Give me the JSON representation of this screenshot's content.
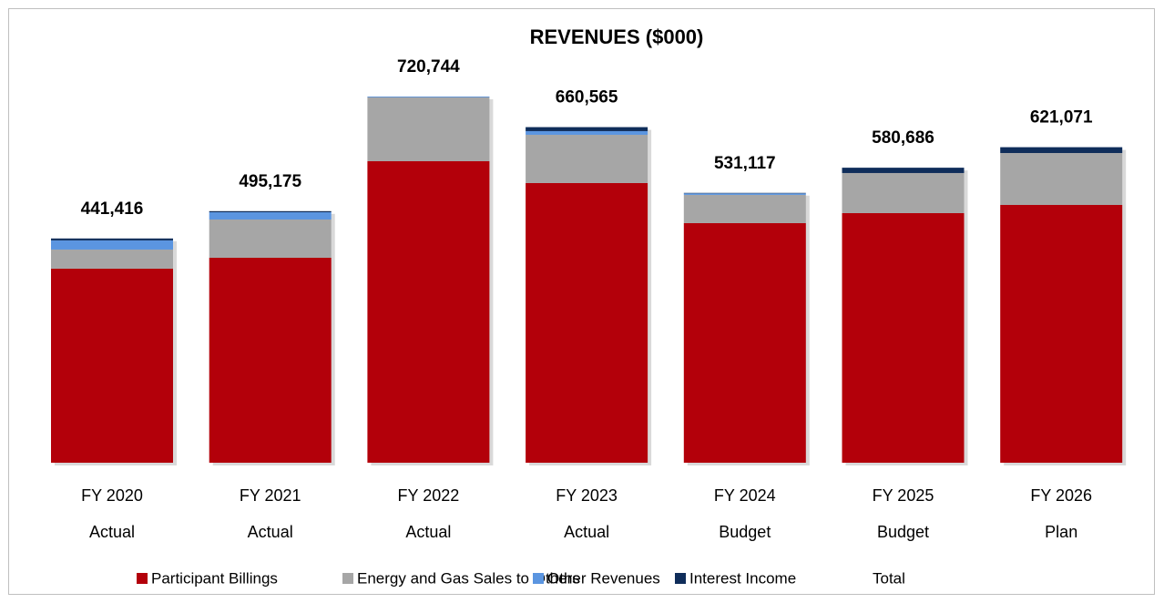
{
  "chart_data": {
    "type": "stacked-bar",
    "title": "REVENUES ($000)",
    "categories": [
      "FY 2020",
      "FY 2021",
      "FY 2022",
      "FY 2023",
      "FY 2024",
      "FY 2025",
      "FY 2026"
    ],
    "category_status": [
      "Actual",
      "Actual",
      "Actual",
      "Actual",
      "Budget",
      "Budget",
      "Plan"
    ],
    "series": [
      {
        "name": "Participant Billings",
        "color": "#b3000a",
        "values": [
          382000,
          403400,
          593500,
          550500,
          471600,
          491300,
          507400
        ]
      },
      {
        "name": "Energy and Gas Sales to Others",
        "color": "#a6a6a6",
        "values": [
          37600,
          75300,
          125500,
          95000,
          55600,
          78900,
          102200
        ]
      },
      {
        "name": "Other Revenues",
        "color": "#5b95e0",
        "values": [
          18000,
          14300,
          1500,
          7200,
          3000,
          0,
          0
        ]
      },
      {
        "name": "Interest Income",
        "color": "#0f2d5a",
        "values": [
          3816,
          2175,
          244,
          7865,
          917,
          10486,
          11471
        ]
      }
    ],
    "total": {
      "name": "Total",
      "values": [
        441416,
        495175,
        720744,
        660565,
        531117,
        580686,
        621071
      ],
      "value_labels": [
        "441,416",
        "495,175",
        "720,744",
        "660,565",
        "531,117",
        "580,686",
        "621,071"
      ]
    },
    "legend": "bottom"
  }
}
